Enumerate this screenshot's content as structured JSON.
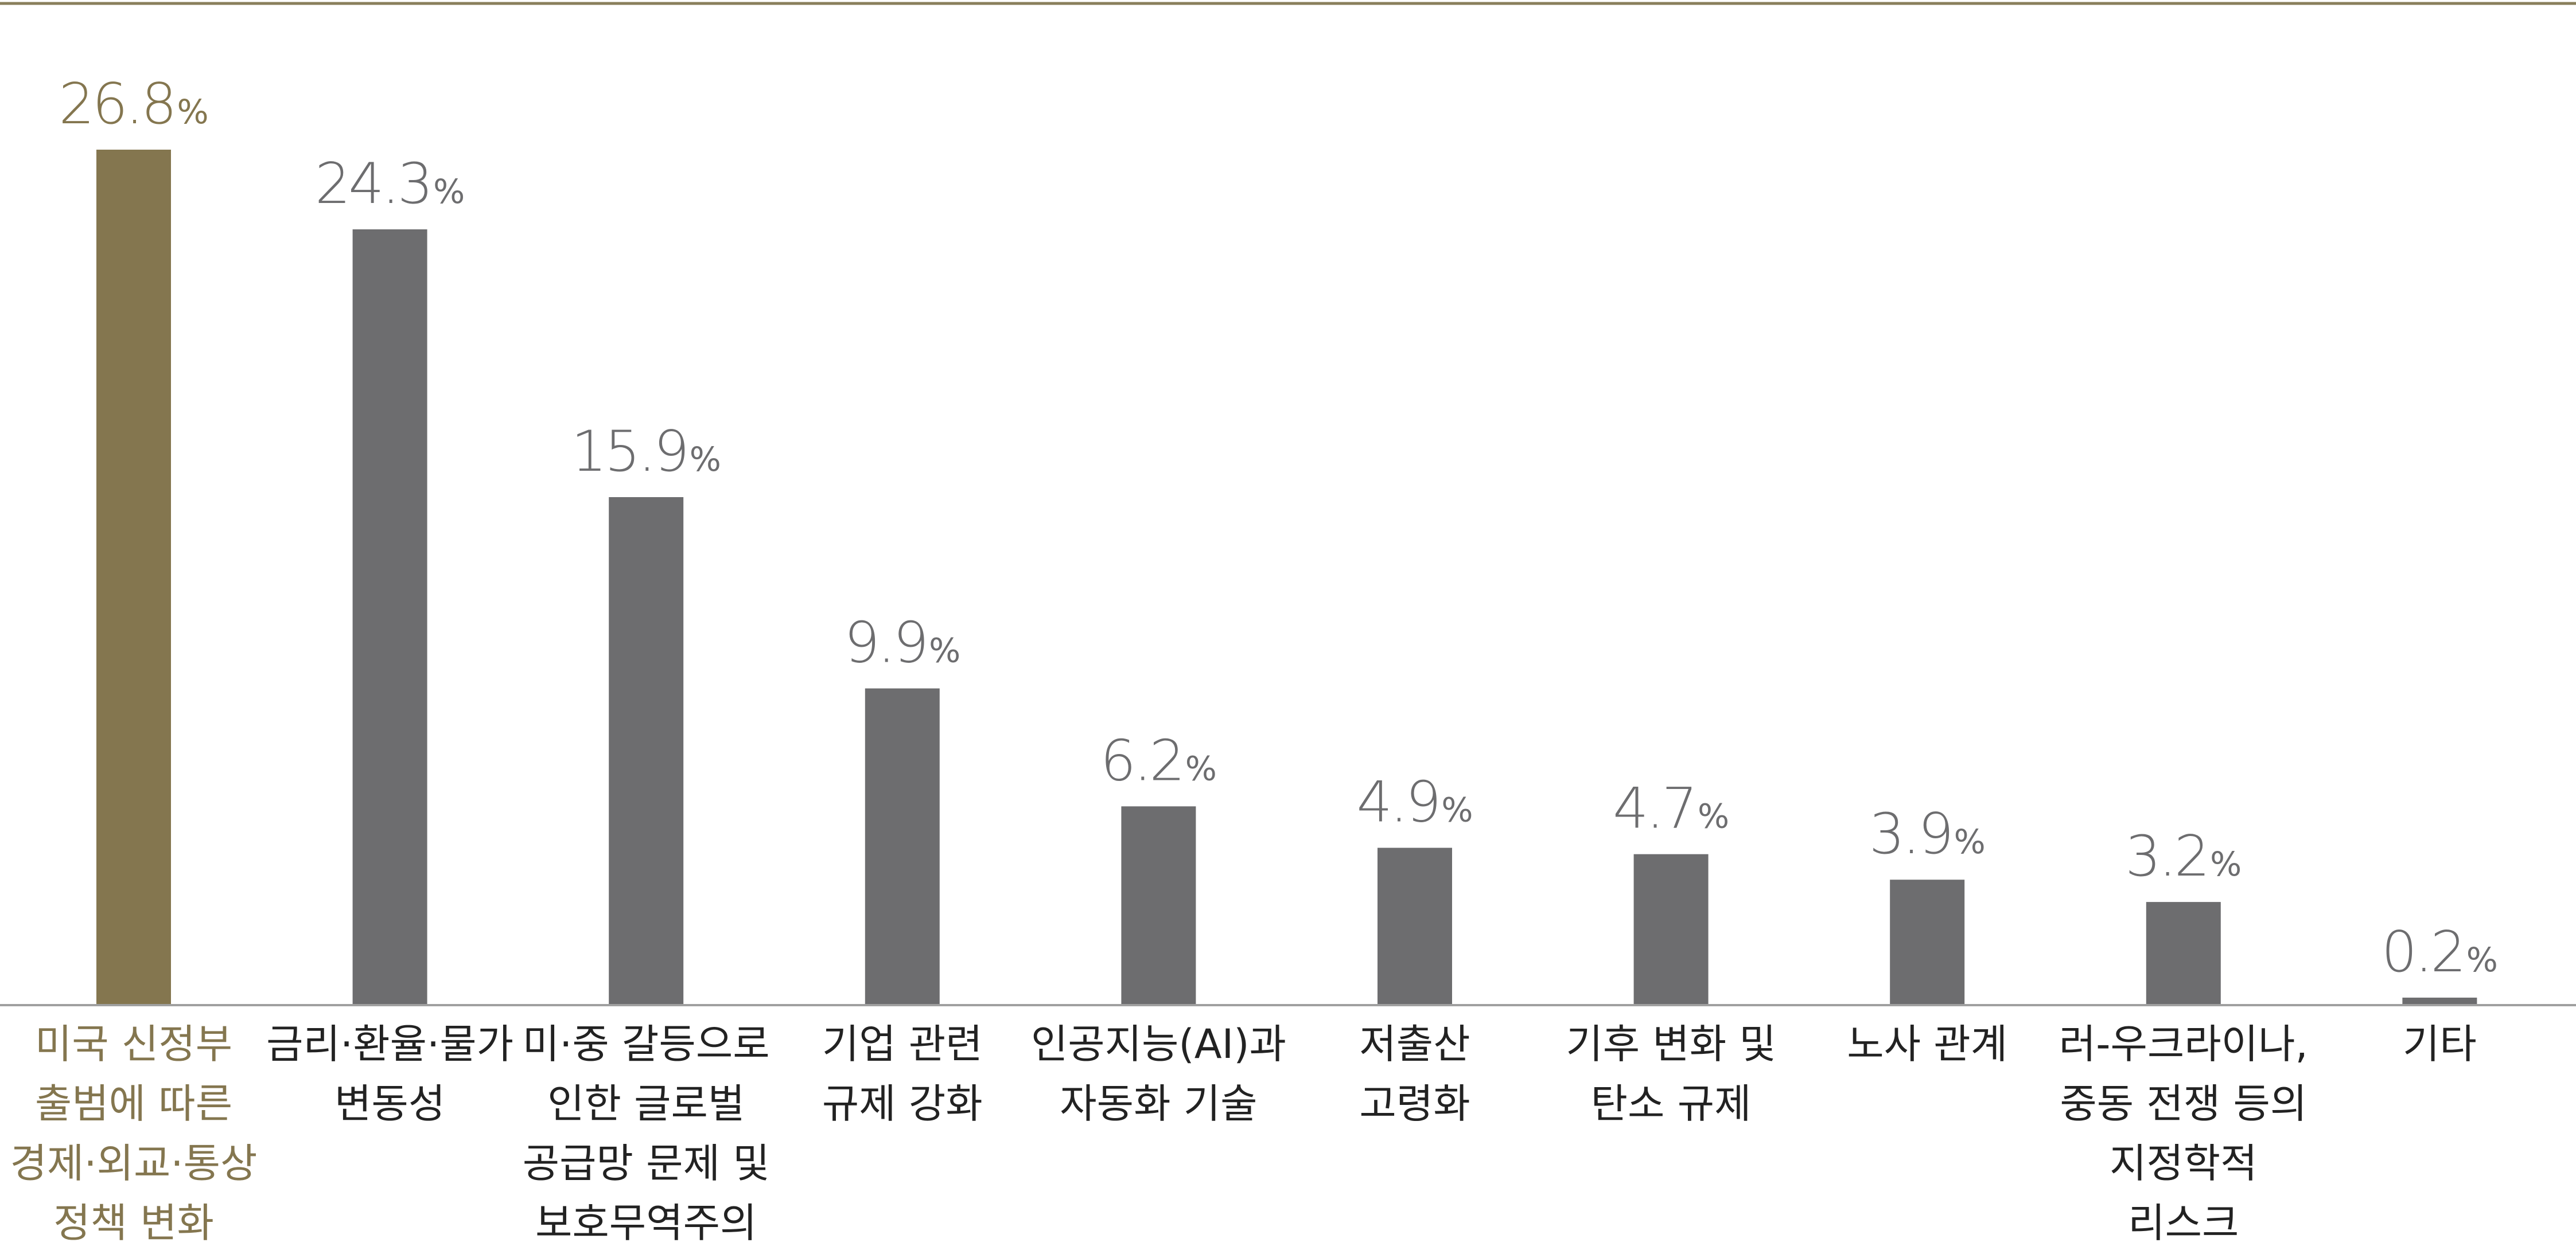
{
  "chart_data": {
    "type": "bar",
    "categories": [
      [
        "미국 신정부",
        "출범에 따른",
        "경제·외교·통상",
        "정책 변화"
      ],
      [
        "금리·환율·물가",
        "변동성"
      ],
      [
        "미·중 갈등으로",
        "인한 글로벌",
        "공급망 문제 및",
        "보호무역주의"
      ],
      [
        "기업 관련",
        "규제 강화"
      ],
      [
        "인공지능(AI)과",
        "자동화 기술"
      ],
      [
        "저출산",
        "고령화"
      ],
      [
        "기후 변화 및",
        "탄소 규제"
      ],
      [
        "노사 관계"
      ],
      [
        "러-우크라이나,",
        "중동 전쟁 등의",
        "지정학적",
        "리스크"
      ],
      [
        "기타"
      ]
    ],
    "values": [
      26.8,
      24.3,
      15.9,
      9.9,
      6.2,
      4.9,
      4.7,
      3.9,
      3.2,
      0.2
    ],
    "value_labels": [
      "26.8",
      "24.3",
      "15.9",
      "9.9",
      "6.2",
      "4.9",
      "4.7",
      "3.9",
      "3.2",
      "0.2"
    ],
    "unit": "%",
    "ylim": [
      0,
      30
    ],
    "grid": false,
    "highlight_index": 0,
    "colors": {
      "highlight": "#84764f",
      "bar": "#6d6d6f",
      "rule": "#8a7f5c",
      "axis": "#a0a0a0",
      "value_text": "#6d6d6f",
      "highlight_text": "#84764f",
      "category_text": "#222222"
    }
  }
}
